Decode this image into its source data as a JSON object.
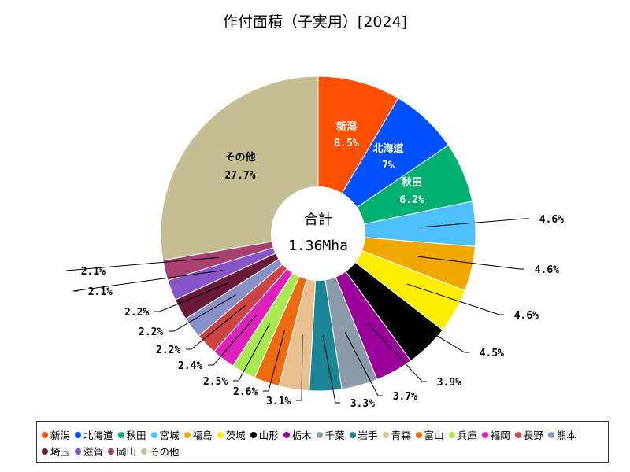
{
  "chart_data": {
    "type": "pie",
    "title": "作付面積（子実用）[2024]",
    "center_label": "合計",
    "center_value": "1.36Mha",
    "legend_position": "bottom",
    "slices": [
      {
        "name": "新潟",
        "value": 8.5,
        "label": "8.5%",
        "color": "#ff4f00"
      },
      {
        "name": "北海道",
        "value": 7.0,
        "label": "7%",
        "color": "#0050ff"
      },
      {
        "name": "秋田",
        "value": 6.2,
        "label": "6.2%",
        "color": "#00b070"
      },
      {
        "name": "宮城",
        "value": 4.6,
        "label": "4.6%",
        "color": "#4fc0ff"
      },
      {
        "name": "福島",
        "value": 4.6,
        "label": "4.6%",
        "color": "#f0a800"
      },
      {
        "name": "茨城",
        "value": 4.6,
        "label": "4.6%",
        "color": "#ffee00"
      },
      {
        "name": "山形",
        "value": 4.5,
        "label": "4.5%",
        "color": "#000000"
      },
      {
        "name": "栃木",
        "value": 3.9,
        "label": "3.9%",
        "color": "#9a0099"
      },
      {
        "name": "千葉",
        "value": 3.7,
        "label": "3.7%",
        "color": "#8a9aa8"
      },
      {
        "name": "岩手",
        "value": 3.3,
        "label": "3.3%",
        "color": "#1a8596"
      },
      {
        "name": "青森",
        "value": 3.1,
        "label": "3.1%",
        "color": "#e8c090"
      },
      {
        "name": "富山",
        "value": 2.6,
        "label": "2.6%",
        "color": "#ee6a10"
      },
      {
        "name": "兵庫",
        "value": 2.5,
        "label": "2.5%",
        "color": "#a8e850"
      },
      {
        "name": "福岡",
        "value": 2.4,
        "label": "2.4%",
        "color": "#dd22bb"
      },
      {
        "name": "長野",
        "value": 2.2,
        "label": "2.2%",
        "color": "#cc4444"
      },
      {
        "name": "熊本",
        "value": 2.2,
        "label": "2.2%",
        "color": "#8890c8"
      },
      {
        "name": "埼玉",
        "value": 2.2,
        "label": "2.2%",
        "color": "#6a1a38"
      },
      {
        "name": "滋賀",
        "value": 2.1,
        "label": "2.1%",
        "color": "#8855c8"
      },
      {
        "name": "岡山",
        "value": 2.1,
        "label": "2.1%",
        "color": "#a84070"
      },
      {
        "name": "その他",
        "value": 27.7,
        "label": "27.7%",
        "color": "#c4be92"
      }
    ]
  }
}
